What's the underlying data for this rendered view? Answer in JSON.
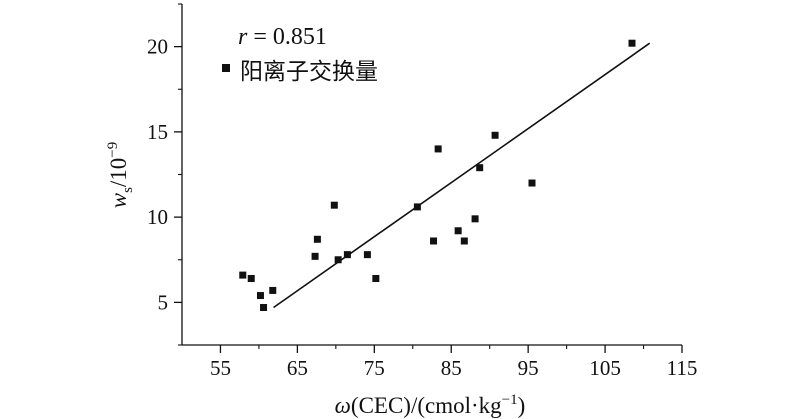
{
  "chart_data": {
    "type": "scatter",
    "annotation": {
      "var": "r",
      "rest": " = 0.851"
    },
    "legend": {
      "label": "阳离子交换量",
      "position": "top-left"
    },
    "xlabel": {
      "omega": "ω",
      "text": "(CEC)/(cmol·kg",
      "sup": "−1",
      "close": ")"
    },
    "ylabel": {
      "w": "w",
      "sub": "s",
      "base": "/10",
      "sup": "−9"
    },
    "xlim": [
      50,
      115
    ],
    "ylim": [
      2.5,
      22.5
    ],
    "xticks": [
      55,
      65,
      75,
      85,
      95,
      105,
      115
    ],
    "yticks": [
      5,
      10,
      15,
      20
    ],
    "x": [
      57.9,
      59.0,
      60.2,
      60.6,
      61.8,
      67.3,
      67.6,
      69.8,
      70.3,
      71.5,
      74.1,
      75.2,
      80.6,
      82.7,
      83.3,
      85.9,
      86.7,
      88.1,
      88.7,
      90.7,
      95.5,
      108.5
    ],
    "y": [
      6.6,
      6.4,
      5.4,
      4.7,
      5.7,
      7.7,
      8.7,
      10.7,
      7.5,
      7.8,
      7.8,
      6.4,
      10.6,
      8.6,
      14.0,
      9.2,
      8.6,
      9.9,
      12.9,
      14.8,
      12.0,
      20.2
    ],
    "trendline": {
      "x": [
        61.9,
        110.8
      ],
      "y": [
        4.7,
        20.2
      ]
    },
    "marker": "square",
    "marker_color": "#111111",
    "line_color": "#111111",
    "grid": false
  }
}
